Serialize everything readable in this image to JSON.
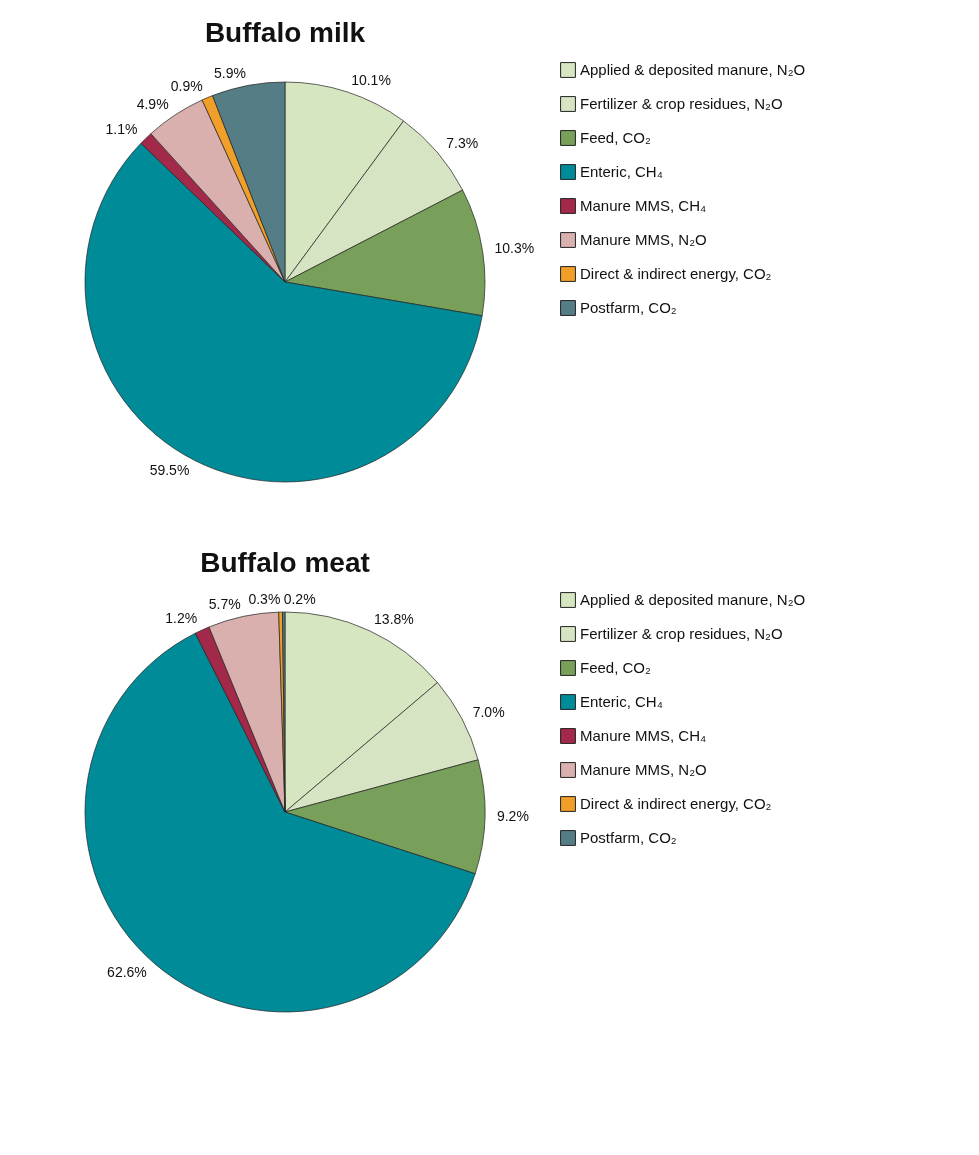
{
  "chart_data": [
    {
      "type": "pie",
      "title": "Buffalo milk",
      "categories": [
        "Applied & deposited manure, N₂O",
        "Fertilizer & crop residues, N₂O",
        "Feed, CO₂",
        "Enteric, CH₄",
        "Manure MMS, CH₄",
        "Manure MMS, N₂O",
        "Direct & indirect energy, CO₂",
        "Postfarm, CO₂"
      ],
      "values": [
        10.1,
        7.3,
        10.3,
        59.5,
        1.1,
        4.9,
        0.9,
        5.9
      ],
      "value_labels": [
        "10.1%",
        "7.3%",
        "10.3%",
        "59.5%",
        "1.1%",
        "4.9%",
        "0.9%",
        "5.9%"
      ],
      "colors": [
        "#d5e6c0",
        "#d6e4c3",
        "#78a05a",
        "#008b99",
        "#a3294a",
        "#dab0ae",
        "#f0a028",
        "#557d85"
      ],
      "legend": "right"
    },
    {
      "type": "pie",
      "title": "Buffalo meat",
      "categories": [
        "Applied & deposited manure, N₂O",
        "Fertilizer & crop residues, N₂O",
        "Feed, CO₂",
        "Enteric, CH₄",
        "Manure MMS, CH₄",
        "Manure MMS, N₂O",
        "Direct & indirect energy, CO₂",
        "Postfarm, CO₂"
      ],
      "values": [
        13.8,
        7.0,
        9.2,
        62.6,
        1.2,
        5.7,
        0.3,
        0.2
      ],
      "value_labels": [
        "13.8%",
        "7.0%",
        "9.2%",
        "62.6%",
        "1.2%",
        "5.7%",
        "0.3%",
        "0.2%"
      ],
      "colors": [
        "#d5e6c0",
        "#d6e4c3",
        "#78a05a",
        "#008b99",
        "#a3294a",
        "#dab0ae",
        "#f0a028",
        "#557d85"
      ],
      "legend": "right"
    }
  ]
}
